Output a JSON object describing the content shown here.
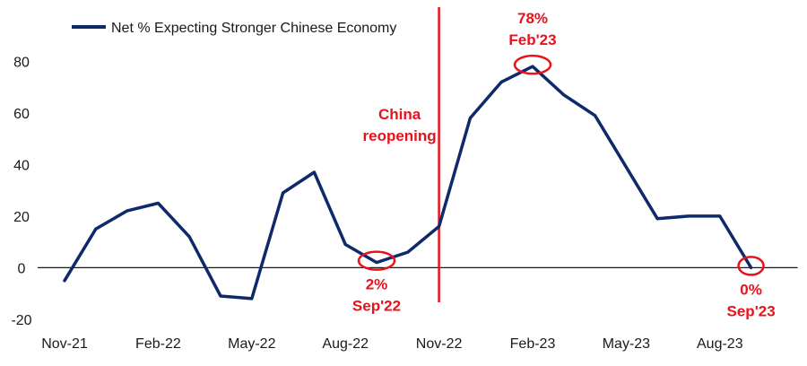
{
  "chart_data": {
    "type": "line",
    "series": [
      {
        "name": "Net % Expecting Stronger Chinese Economy",
        "color": "#0f2a6b",
        "x": [
          "Nov-21",
          "Dec-21",
          "Jan-22",
          "Feb-22",
          "Mar-22",
          "Apr-22",
          "May-22",
          "Jun-22",
          "Jul-22",
          "Aug-22",
          "Sep-22",
          "Oct-22",
          "Nov-22",
          "Dec-22",
          "Jan-23",
          "Feb-23",
          "Mar-23",
          "Apr-23",
          "May-23",
          "Jun-23",
          "Jul-23",
          "Aug-23",
          "Sep-23"
        ],
        "values": [
          -5,
          15,
          22,
          25,
          12,
          -11,
          -12,
          29,
          37,
          9,
          2,
          6,
          16,
          58,
          72,
          78,
          67,
          59,
          39,
          19,
          20,
          20,
          0
        ]
      }
    ],
    "x_tick_labels": [
      "Nov-21",
      "Feb-22",
      "May-22",
      "Aug-22",
      "Nov-22",
      "Feb-23",
      "May-23",
      "Aug-23"
    ],
    "y_ticks": [
      -20,
      0,
      20,
      40,
      60,
      80
    ],
    "ylim": [
      -20,
      90
    ],
    "grid": false,
    "legend_position": "top-left",
    "event_line": {
      "x": "Nov-22",
      "label_line1": "China",
      "label_line2": "reopening",
      "color": "#e8121c"
    },
    "annotations": [
      {
        "x": "Sep-22",
        "value_label": "2%",
        "date_label": "Sep'22"
      },
      {
        "x": "Feb-23",
        "value_label": "78%",
        "date_label": "Feb'23"
      },
      {
        "x": "Sep-23",
        "value_label": "0%",
        "date_label": "Sep'23"
      }
    ],
    "highlight_color": "#e8121c"
  }
}
